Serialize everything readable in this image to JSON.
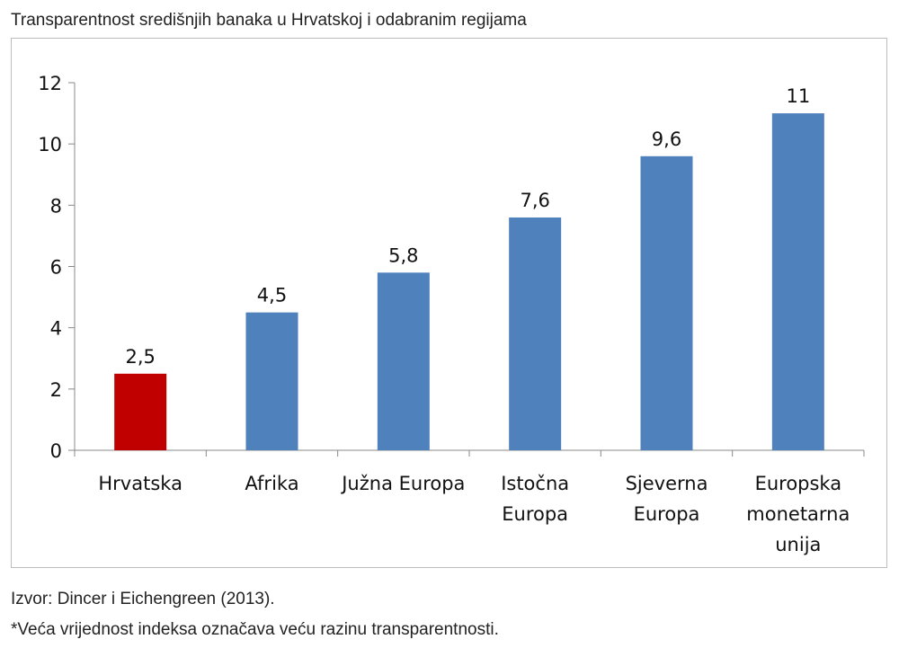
{
  "title": "Transparentnost središnjih banaka u Hrvatskoj i odabranim regijama",
  "footnote_source": "Izvor: Dincer i Eichengreen (2013).",
  "footnote_note": "*Veća vrijednost indeksa označava veću razinu transparentnosti.",
  "chart_data": {
    "type": "bar",
    "categories": [
      [
        "Hrvatska"
      ],
      [
        "Afrika"
      ],
      [
        "Južna Europa"
      ],
      [
        "Istočna",
        "Europa"
      ],
      [
        "Sjeverna",
        "Europa"
      ],
      [
        "Europska",
        "monetarna",
        "unija"
      ]
    ],
    "values": [
      2.5,
      4.5,
      5.8,
      7.6,
      9.6,
      11
    ],
    "value_labels": [
      "2,5",
      "4,5",
      "5,8",
      "7,6",
      "9,6",
      "11"
    ],
    "bar_colors": [
      "#c00000",
      "#4f81bd",
      "#4f81bd",
      "#4f81bd",
      "#4f81bd",
      "#4f81bd"
    ],
    "ylim": [
      0,
      12
    ],
    "yticks": [
      0,
      2,
      4,
      6,
      8,
      10,
      12
    ],
    "grid": false,
    "legend": "none"
  }
}
